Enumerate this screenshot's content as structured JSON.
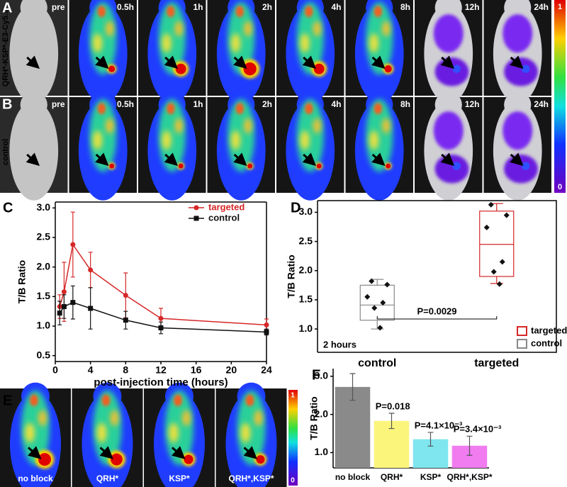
{
  "figure": {
    "panel_labels": [
      "A",
      "B",
      "C",
      "D",
      "E",
      "F"
    ],
    "imaging": {
      "row_labels": [
        "QRH*-KSP*-E3-Cy5.5",
        "control"
      ],
      "time_labels": [
        "pre",
        "0.5h",
        "1h",
        "2h",
        "4h",
        "8h",
        "12h",
        "24h"
      ],
      "scale_max": 1,
      "scale_min": 0
    },
    "blocking": {
      "labels": [
        "no block",
        "QRH*",
        "KSP*",
        "QRH*,KSP*"
      ],
      "scale_max": 1,
      "scale_min": 0
    }
  },
  "chart_data": [
    {
      "type": "line",
      "y_label": "T/B Ratio",
      "x_label": "post-injection time (hours)",
      "x": [
        0.5,
        1,
        2,
        4,
        8,
        12,
        24
      ],
      "xlim": [
        0,
        24
      ],
      "xticks": [
        0,
        4,
        8,
        12,
        16,
        20,
        24
      ],
      "ylim": [
        0.4,
        3.1
      ],
      "yticks": [
        0.5,
        {
          "value": 1,
          "label": "1.0"
        },
        1.5,
        {
          "value": 2,
          "label": "2.0"
        },
        2.5,
        {
          "value": 3,
          "label": "3.0"
        }
      ],
      "legend": "upper right",
      "series": [
        {
          "name": "targeted",
          "color": "#d62728",
          "marker": "circle",
          "values": [
            1.33,
            1.58,
            2.38,
            1.95,
            1.52,
            1.13,
            1.02
          ],
          "errors": [
            0.2,
            0.5,
            0.55,
            0.3,
            0.38,
            0.17,
            0.1
          ]
        },
        {
          "name": "control",
          "color": "#111111",
          "marker": "square",
          "values": [
            1.22,
            1.33,
            1.4,
            1.3,
            1.1,
            0.97,
            0.9
          ],
          "errors": [
            0.2,
            0.2,
            0.28,
            0.35,
            0.15,
            0.1,
            0.05
          ]
        }
      ]
    },
    {
      "type": "box",
      "y_label": "T/B Ratio",
      "ylim": [
        0.6,
        3.2
      ],
      "yticks": [
        {
          "value": 1,
          "label": "1.0"
        },
        1.5,
        {
          "value": 2,
          "label": "2.0"
        },
        2.5,
        {
          "value": 3,
          "label": "3.0"
        }
      ],
      "legend": "lower right",
      "boxes": [
        {
          "name": "control",
          "color": "#888888",
          "min": 1.0,
          "q1": 1.15,
          "median": 1.41,
          "q3": 1.75,
          "max": 1.85,
          "points": [
            1.82,
            1.76,
            1.55,
            1.45,
            1.36,
            1.02
          ]
        },
        {
          "name": "targeted",
          "color": "#d62728",
          "min": 1.78,
          "q1": 1.9,
          "median": 2.45,
          "q3": 3.02,
          "max": 3.15,
          "points": [
            3.13,
            2.95,
            2.74,
            2.15,
            1.98,
            1.77
          ]
        }
      ],
      "p_value": "P=0.0029",
      "note": "2 hours"
    },
    {
      "type": "bar",
      "y_label": "T/B Ratio",
      "categories": [
        "no block",
        "QRH*",
        "KSP*",
        "QRH*,KSP*"
      ],
      "values": [
        2.72,
        1.83,
        1.35,
        1.18
      ],
      "errors": [
        0.35,
        0.2,
        0.18,
        0.25
      ],
      "colors": [
        "#8a8a8a",
        "#fbf57c",
        "#7fe6f0",
        "#f07cf0"
      ],
      "p_values": [
        null,
        "P=0.018",
        "P=4.1×10⁻³",
        "P=3.4×10⁻³"
      ],
      "ylim": [
        0.6,
        3.2
      ],
      "yticks": [
        {
          "value": 1,
          "label": "1.0"
        },
        {
          "value": 2,
          "label": "2.0"
        },
        {
          "value": 3,
          "label": "3.0"
        }
      ]
    }
  ]
}
